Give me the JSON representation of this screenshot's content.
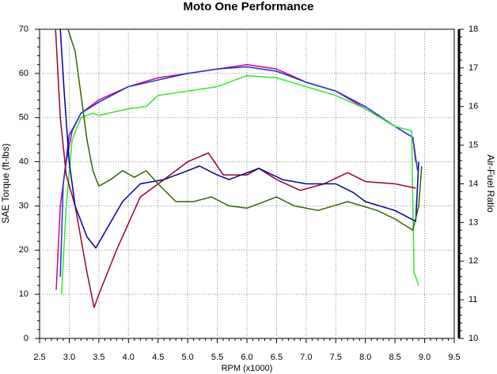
{
  "chart_data": {
    "type": "line",
    "title": "Moto One Performance",
    "x_label": "RPM (x1000)",
    "y_label": "SAE Torque (ft-lbs)",
    "y2_label": "Air-Fuel Ratio",
    "xlim": [
      2.5,
      9.5
    ],
    "xticks": [
      2.5,
      {
        "value": 3,
        "label": "3.0"
      },
      3.5,
      {
        "value": 4,
        "label": "4.0"
      },
      4.5,
      {
        "value": 5,
        "label": "5.0"
      },
      5.5,
      {
        "value": 6,
        "label": "6.0"
      },
      6.5,
      {
        "value": 7,
        "label": "7.0"
      },
      7.5,
      {
        "value": 8,
        "label": "8.0"
      },
      8.5,
      {
        "value": 9,
        "label": "9.0"
      },
      9.5
    ],
    "ylim": [
      0,
      70
    ],
    "yticks": [
      0,
      10,
      20,
      30,
      40,
      50,
      60,
      70
    ],
    "y2lim": [
      10,
      18
    ],
    "y2ticks": [
      10,
      11,
      12,
      13,
      14,
      15,
      16,
      17,
      18
    ],
    "grid": true,
    "series": [
      {
        "color": "#cc0099",
        "x": [
          2.78,
          2.85,
          2.95,
          3.05,
          3.2,
          3.5,
          4.0,
          4.5,
          5.0,
          5.5,
          6.0,
          6.5,
          7.0,
          7.5,
          8.0,
          8.5,
          8.8,
          8.85
        ],
        "values": [
          11,
          30,
          40,
          47,
          51,
          54,
          57,
          59,
          60,
          61,
          62,
          61,
          58,
          56,
          52,
          48,
          45.5,
          40
        ]
      },
      {
        "color": "#1a33cc",
        "x": [
          2.85,
          2.9,
          3.0,
          3.2,
          3.5,
          4.0,
          4.5,
          5.0,
          5.5,
          6.0,
          6.5,
          7.0,
          7.5,
          8.0,
          8.5,
          8.8,
          8.88
        ],
        "values": [
          14,
          35,
          46,
          51,
          53.5,
          57,
          58.5,
          60,
          61,
          61.5,
          60.5,
          58,
          56,
          52.5,
          48,
          45.5,
          38
        ]
      },
      {
        "color": "#33e633",
        "x": [
          2.87,
          2.95,
          3.05,
          3.2,
          3.4,
          3.5,
          4.0,
          4.3,
          4.5,
          5.0,
          5.5,
          6.0,
          6.5,
          7.0,
          7.5,
          8.0,
          8.5,
          8.78,
          8.82,
          8.9
        ],
        "values": [
          10,
          30,
          45,
          50,
          51,
          50.5,
          52,
          52.5,
          55,
          56,
          57,
          59.5,
          59,
          57,
          55,
          52,
          48,
          47,
          15,
          12
        ]
      },
      {
        "color": "#990033",
        "axis": "y2",
        "x": [
          2.77,
          2.85,
          2.95,
          3.1,
          3.3,
          3.42,
          3.5,
          3.8,
          4.2,
          4.6,
          5.0,
          5.35,
          5.6,
          6.0,
          6.2,
          6.5,
          6.9,
          7.3,
          7.7,
          8.0,
          8.5,
          8.85
        ],
        "values": [
          18,
          15.71,
          14.23,
          13.43,
          11.71,
          10.8,
          11.14,
          12.29,
          13.66,
          14.11,
          14.57,
          14.8,
          14.23,
          14.23,
          14.4,
          14.11,
          13.83,
          14.0,
          14.29,
          14.06,
          14.0,
          13.89
        ]
      },
      {
        "color": "#000099",
        "axis": "y2",
        "x": [
          2.85,
          2.92,
          3.0,
          3.1,
          3.3,
          3.45,
          3.6,
          3.9,
          4.2,
          4.6,
          5.0,
          5.2,
          5.5,
          5.7,
          6.2,
          6.6,
          7.0,
          7.5,
          7.8,
          8.0,
          8.5,
          8.85,
          8.9
        ],
        "values": [
          18,
          16.29,
          14.57,
          13.43,
          12.63,
          12.34,
          12.74,
          13.54,
          14.0,
          14.11,
          14.34,
          14.46,
          14.23,
          14.11,
          14.4,
          14.11,
          14.0,
          14.0,
          13.77,
          13.54,
          13.31,
          13.03,
          14.57
        ]
      },
      {
        "color": "#336600",
        "axis": "y2",
        "x": [
          2.98,
          3.1,
          3.2,
          3.3,
          3.4,
          3.5,
          3.7,
          3.9,
          4.1,
          4.3,
          4.5,
          4.8,
          5.1,
          5.4,
          5.7,
          6.0,
          6.5,
          6.8,
          7.2,
          7.7,
          8.2,
          8.5,
          8.8,
          8.9,
          8.95
        ],
        "values": [
          18,
          17.43,
          16.29,
          15.14,
          14.34,
          13.94,
          14.11,
          14.34,
          14.17,
          14.34,
          14.0,
          13.54,
          13.54,
          13.66,
          13.43,
          13.37,
          13.66,
          13.43,
          13.31,
          13.54,
          13.31,
          13.09,
          12.8,
          13.43,
          14.46
        ]
      }
    ]
  }
}
